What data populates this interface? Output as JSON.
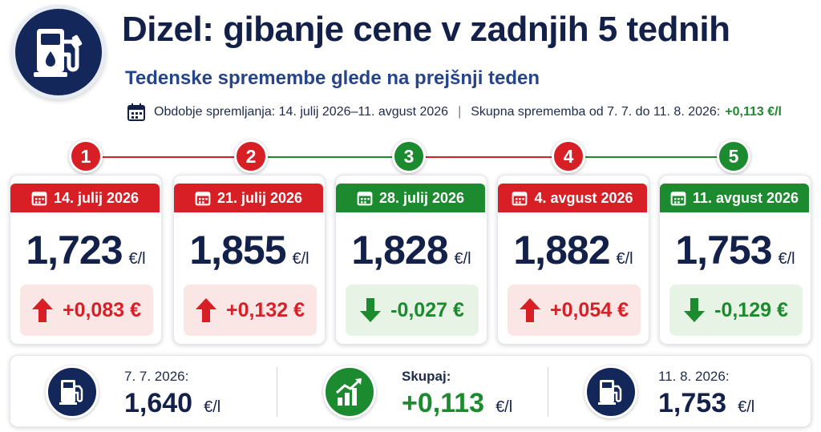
{
  "header": {
    "title": "Dizel: gibanje cene v zadnjih 5 tednih",
    "subtitle": "Tedenske spremembe glede na prejšnji teden",
    "period_text": "Obdobje spremljanja: 14. julij 2026–11. avgust 2026",
    "separator": "|",
    "total_text": "Skupna sprememba od 7. 7. do 11. 8. 2026:",
    "total_value": "+0,113 €/l",
    "icon": "fuel-pump-icon"
  },
  "colors": {
    "navy": "#13275a",
    "red": "#d81f26",
    "green": "#1c8a2e"
  },
  "weeks": [
    {
      "step": "1",
      "date": "14. julij 2026",
      "price": "1,723",
      "unit": "€/l",
      "change": "+0,083 €",
      "direction": "up"
    },
    {
      "step": "2",
      "date": "21. julij 2026",
      "price": "1,855",
      "unit": "€/l",
      "change": "+0,132 €",
      "direction": "up"
    },
    {
      "step": "3",
      "date": "28. julij 2026",
      "price": "1,828",
      "unit": "€/l",
      "change": "-0,027 €",
      "direction": "down"
    },
    {
      "step": "4",
      "date": "4. avgust 2026",
      "price": "1,882",
      "unit": "€/l",
      "change": "+0,054 €",
      "direction": "up"
    },
    {
      "step": "5",
      "date": "11. avgust 2026",
      "price": "1,753",
      "unit": "€/l",
      "change": "-0,129 €",
      "direction": "down"
    }
  ],
  "summary": {
    "start": {
      "label": "7. 7. 2026:",
      "value": "1,640",
      "unit": "€/l",
      "icon": "fuel-pump-icon"
    },
    "total": {
      "label": "Skupaj:",
      "value": "+0,113",
      "unit": "€/l",
      "icon": "growth-chart-icon"
    },
    "end": {
      "label": "11. 8. 2026:",
      "value": "1,753",
      "unit": "€/l",
      "icon": "fuel-pump-icon"
    }
  }
}
